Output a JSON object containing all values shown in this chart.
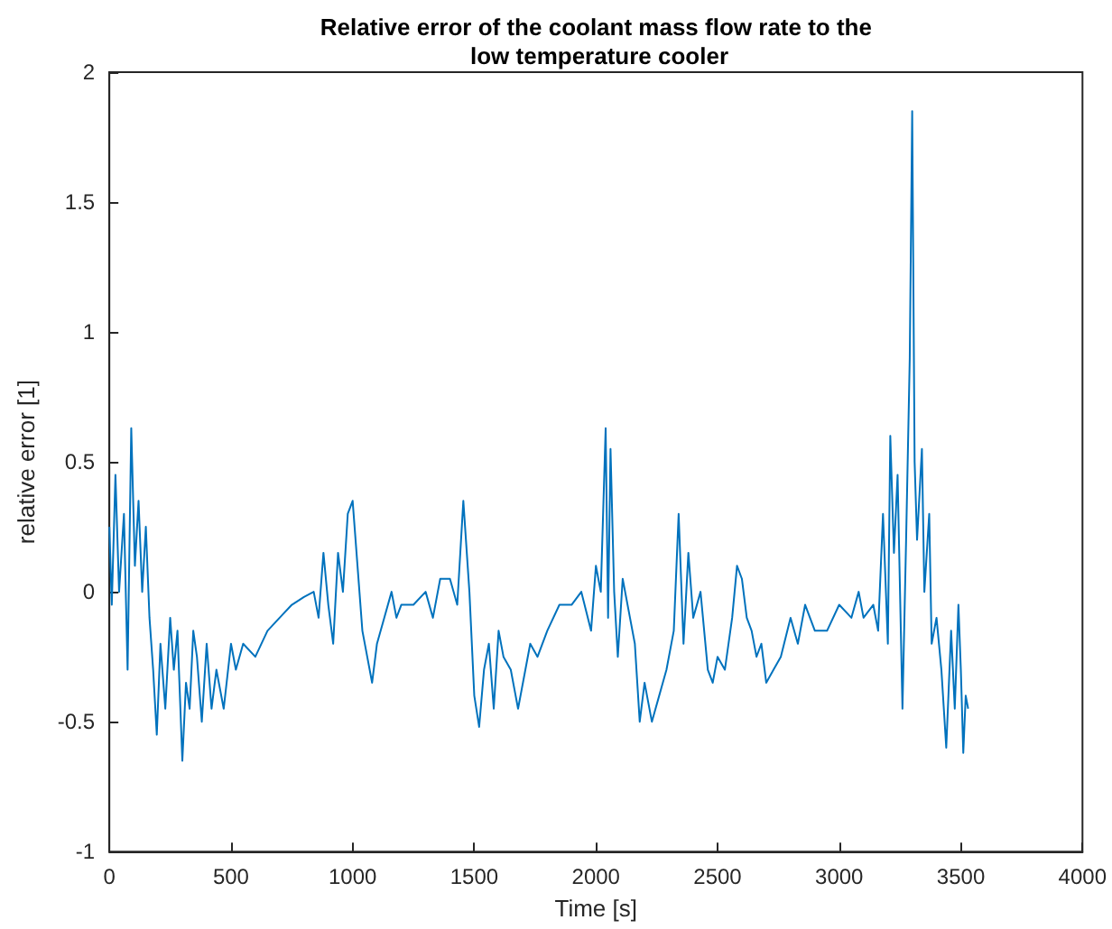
{
  "chart_data": {
    "type": "line",
    "title": "Relative error of the coolant mass flow rate to the low temperature cooler",
    "xlabel": "Time [s]",
    "ylabel": "relative error [1]",
    "x": [
      0,
      10,
      25,
      40,
      60,
      75,
      90,
      105,
      120,
      135,
      150,
      165,
      180,
      195,
      210,
      230,
      250,
      265,
      280,
      300,
      315,
      330,
      345,
      360,
      380,
      400,
      420,
      440,
      470,
      500,
      520,
      550,
      600,
      650,
      700,
      750,
      800,
      840,
      860,
      880,
      900,
      920,
      940,
      960,
      980,
      1000,
      1020,
      1040,
      1060,
      1080,
      1100,
      1130,
      1160,
      1180,
      1200,
      1250,
      1300,
      1330,
      1360,
      1400,
      1430,
      1455,
      1480,
      1500,
      1520,
      1540,
      1560,
      1580,
      1600,
      1620,
      1650,
      1680,
      1700,
      1730,
      1760,
      1800,
      1850,
      1900,
      1940,
      1980,
      2000,
      2020,
      2040,
      2050,
      2060,
      2075,
      2090,
      2110,
      2140,
      2160,
      2180,
      2200,
      2230,
      2260,
      2290,
      2320,
      2340,
      2360,
      2380,
      2400,
      2430,
      2460,
      2480,
      2500,
      2530,
      2560,
      2580,
      2600,
      2620,
      2640,
      2660,
      2680,
      2700,
      2730,
      2760,
      2800,
      2830,
      2860,
      2900,
      2950,
      3000,
      3050,
      3080,
      3100,
      3140,
      3160,
      3180,
      3200,
      3210,
      3225,
      3240,
      3260,
      3275,
      3290,
      3300,
      3310,
      3320,
      3340,
      3350,
      3370,
      3380,
      3400,
      3420,
      3440,
      3460,
      3475,
      3490,
      3500,
      3510,
      3520,
      3530
    ],
    "series": [
      {
        "color": "#0072bd",
        "values": [
          0.25,
          -0.05,
          0.45,
          0.0,
          0.3,
          -0.3,
          0.63,
          0.1,
          0.35,
          0.0,
          0.25,
          -0.1,
          -0.3,
          -0.55,
          -0.2,
          -0.45,
          -0.1,
          -0.3,
          -0.15,
          -0.65,
          -0.35,
          -0.45,
          -0.15,
          -0.25,
          -0.5,
          -0.2,
          -0.45,
          -0.3,
          -0.45,
          -0.2,
          -0.3,
          -0.2,
          -0.25,
          -0.15,
          -0.1,
          -0.05,
          -0.02,
          0.0,
          -0.1,
          0.15,
          -0.05,
          -0.2,
          0.15,
          0.0,
          0.3,
          0.35,
          0.1,
          -0.15,
          -0.25,
          -0.35,
          -0.2,
          -0.1,
          0.0,
          -0.1,
          -0.05,
          -0.05,
          0.0,
          -0.1,
          0.05,
          0.05,
          -0.05,
          0.35,
          0.0,
          -0.4,
          -0.52,
          -0.3,
          -0.2,
          -0.45,
          -0.15,
          -0.25,
          -0.3,
          -0.45,
          -0.35,
          -0.2,
          -0.25,
          -0.15,
          -0.05,
          -0.05,
          0.0,
          -0.15,
          0.1,
          0.0,
          0.63,
          -0.1,
          0.55,
          0.0,
          -0.25,
          0.05,
          -0.1,
          -0.2,
          -0.5,
          -0.35,
          -0.5,
          -0.4,
          -0.3,
          -0.15,
          0.3,
          -0.2,
          0.15,
          -0.1,
          0.0,
          -0.3,
          -0.35,
          -0.25,
          -0.3,
          -0.1,
          0.1,
          0.05,
          -0.1,
          -0.15,
          -0.25,
          -0.2,
          -0.35,
          -0.3,
          -0.25,
          -0.1,
          -0.2,
          -0.05,
          -0.15,
          -0.15,
          -0.05,
          -0.1,
          0.0,
          -0.1,
          -0.05,
          -0.15,
          0.3,
          -0.2,
          0.6,
          0.15,
          0.45,
          -0.45,
          0.2,
          0.9,
          1.85,
          0.5,
          0.2,
          0.55,
          0.0,
          0.3,
          -0.2,
          -0.1,
          -0.3,
          -0.6,
          -0.15,
          -0.45,
          -0.05,
          -0.3,
          -0.62,
          -0.4,
          -0.45
        ]
      }
    ],
    "xlim": [
      0,
      4000
    ],
    "xticks": [
      0,
      500,
      1000,
      1500,
      2000,
      2500,
      3000,
      3500,
      4000
    ],
    "ylim": [
      -1,
      2
    ],
    "yticks": [
      -1,
      -0.5,
      0,
      0.5,
      1,
      1.5,
      2
    ],
    "marker": "none",
    "line_style": "solid",
    "grid": false
  }
}
